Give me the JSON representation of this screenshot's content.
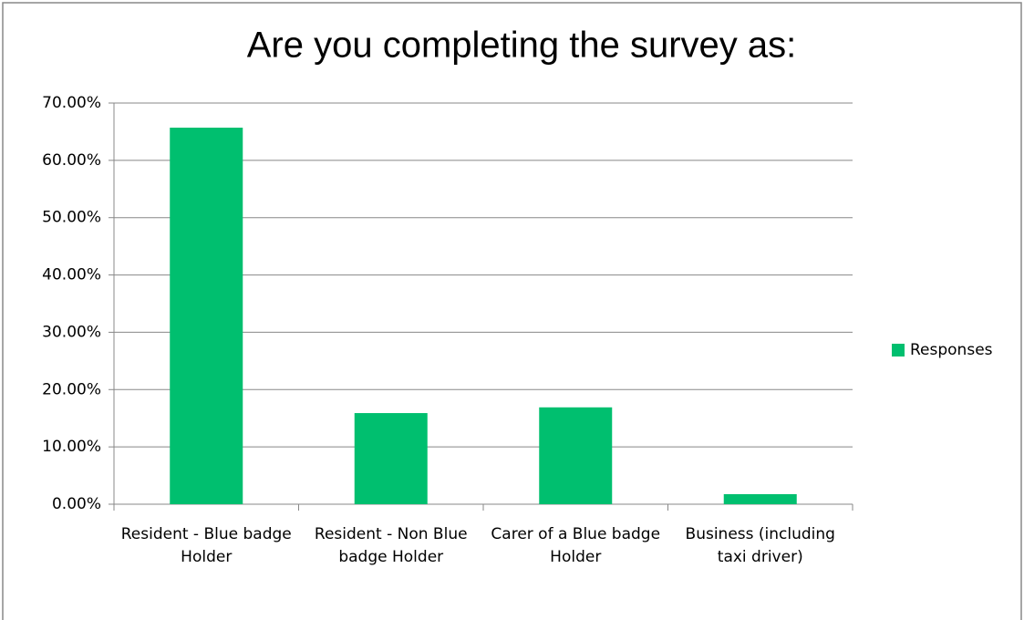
{
  "chart_data": {
    "type": "bar",
    "title": "Are you completing the survey as:",
    "categories": [
      "Resident - Blue badge Holder",
      "Resident - Non Blue badge Holder",
      "Carer of a Blue badge Holder",
      "Business (including taxi driver)"
    ],
    "series": [
      {
        "name": "Responses",
        "color": "#00bf6f",
        "values": [
          65.7,
          15.9,
          16.9,
          1.75
        ]
      }
    ],
    "ylim": [
      0,
      70
    ],
    "yticks": [
      {
        "value": 0,
        "label": "0.00%"
      },
      {
        "value": 10,
        "label": "10.00%"
      },
      {
        "value": 20,
        "label": "20.00%"
      },
      {
        "value": 30,
        "label": "30.00%"
      },
      {
        "value": 40,
        "label": "40.00%"
      },
      {
        "value": 50,
        "label": "50.00%"
      },
      {
        "value": 60,
        "label": "60.00%"
      },
      {
        "value": 70,
        "label": "70.00%"
      }
    ],
    "grid": true,
    "legend": "right"
  }
}
